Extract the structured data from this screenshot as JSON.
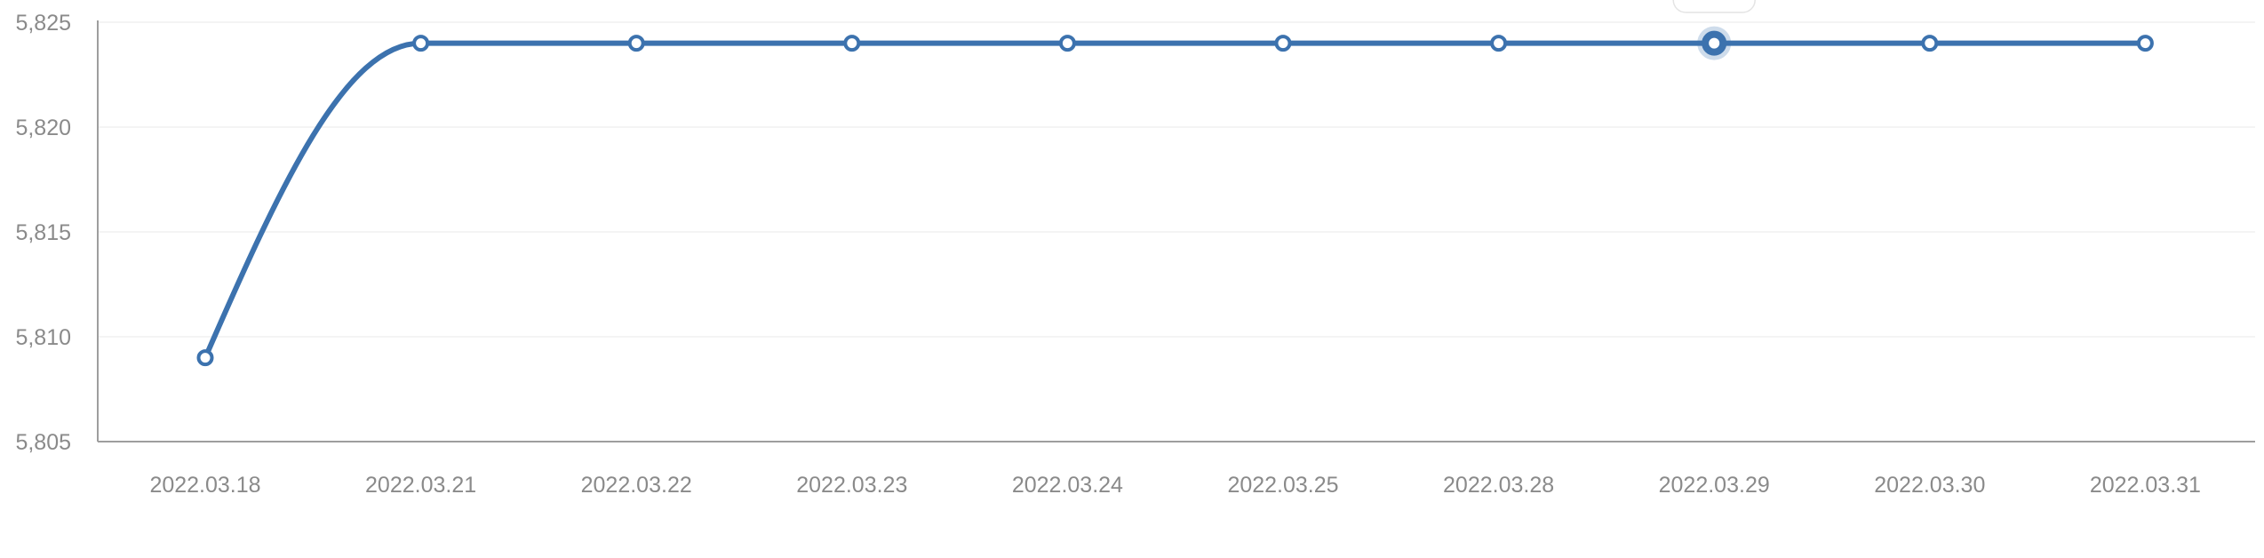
{
  "chart_data": {
    "type": "line",
    "x": [
      "2022.03.18",
      "2022.03.21",
      "2022.03.22",
      "2022.03.23",
      "2022.03.24",
      "2022.03.25",
      "2022.03.28",
      "2022.03.29",
      "2022.03.30",
      "2022.03.31"
    ],
    "series": [
      {
        "values": [
          5809,
          5824,
          5824,
          5824,
          5824,
          5824,
          5824,
          5824,
          5824,
          5824
        ]
      }
    ],
    "ylim": [
      5805,
      5825
    ],
    "yticks": [
      5805,
      5810,
      5815,
      5820,
      5825
    ],
    "ytick_labels": [
      "5,805",
      "5,810",
      "5,815",
      "5,820",
      "5,825"
    ],
    "grid": true,
    "highlighted_index": 7,
    "line_color": "#3c72ae",
    "title": "",
    "xlabel": "",
    "ylabel": ""
  }
}
